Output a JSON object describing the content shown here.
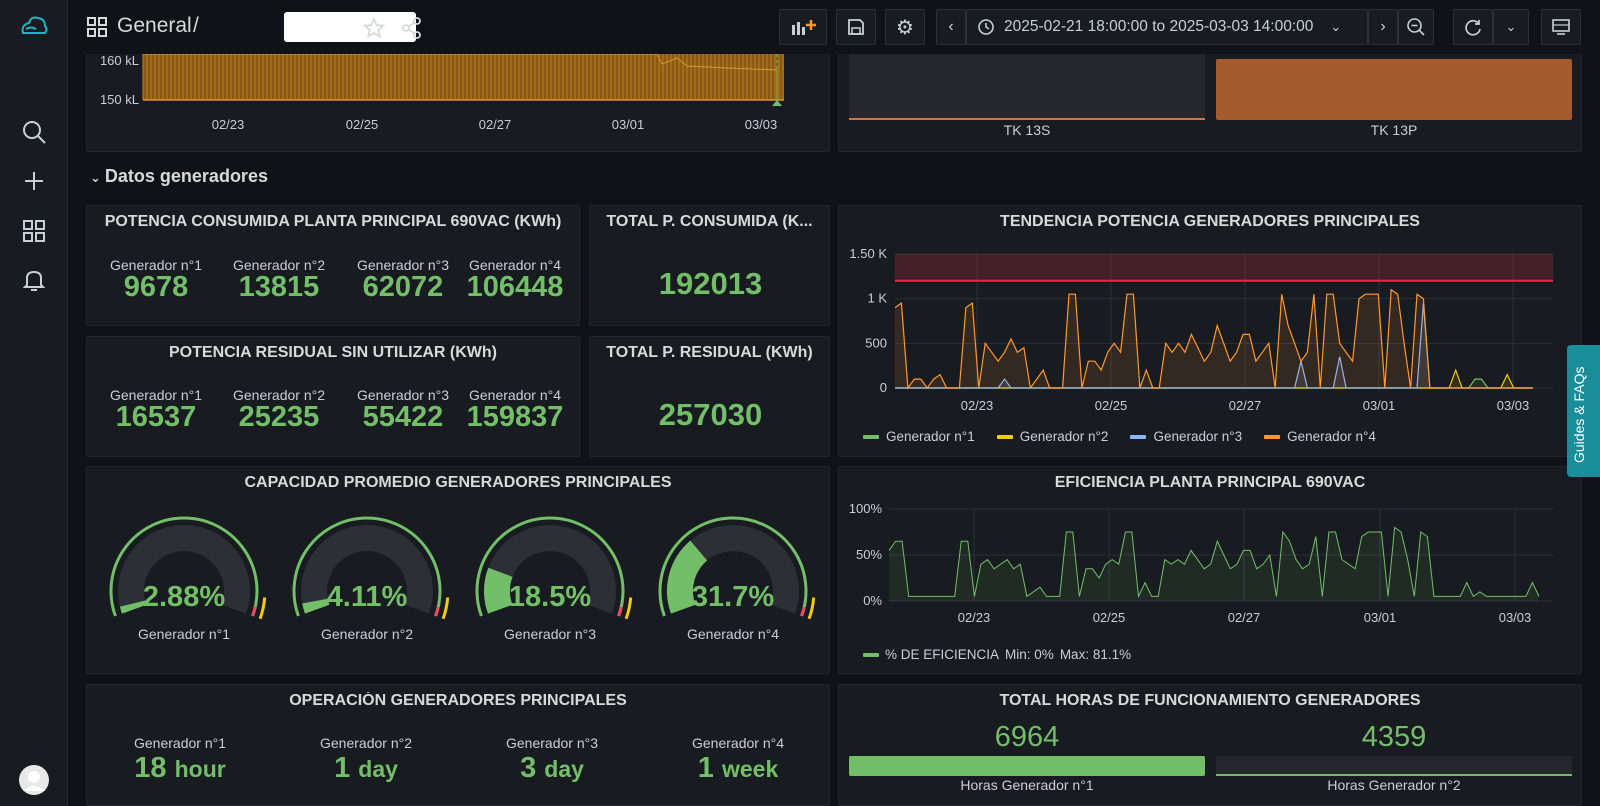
{
  "header": {
    "dashboard_section": "General",
    "separator": "/",
    "time_range": "2025-02-21 18:00:00 to 2025-03-03 14:00:00"
  },
  "colors": {
    "green": "#73bf69",
    "yellow": "#f2cc0c",
    "blue": "#8ab8ff",
    "orange": "#ff9830",
    "red": "#e02f44",
    "teal": "#1a8d9a"
  },
  "top_left_panel": {
    "y_labels": [
      "160 kL",
      "150 kL"
    ],
    "x_labels": [
      "02/23",
      "02/25",
      "02/27",
      "03/01",
      "03/03"
    ]
  },
  "top_right_panel": {
    "bars": [
      {
        "label": "TK 13S"
      },
      {
        "label": "TK 13P"
      }
    ]
  },
  "row": {
    "title": "Datos generadores"
  },
  "potencia_consumida": {
    "title": "POTENCIA CONSUMIDA PLANTA PRINCIPAL 690VAC (KWh)",
    "items": [
      {
        "label": "Generador n°1",
        "value": "9678"
      },
      {
        "label": "Generador n°2",
        "value": "13815"
      },
      {
        "label": "Generador n°3",
        "value": "62072"
      },
      {
        "label": "Generador n°4",
        "value": "106448"
      }
    ]
  },
  "total_consumida": {
    "title": "TOTAL P. CONSUMIDA (K...",
    "value": "192013"
  },
  "potencia_residual": {
    "title": "POTENCIA RESIDUAL SIN UTILIZAR (KWh)",
    "items": [
      {
        "label": "Generador n°1",
        "value": "16537"
      },
      {
        "label": "Generador n°2",
        "value": "25235"
      },
      {
        "label": "Generador n°3",
        "value": "55422"
      },
      {
        "label": "Generador n°4",
        "value": "159837"
      }
    ]
  },
  "total_residual": {
    "title": "TOTAL P. RESIDUAL (KWh)",
    "value": "257030"
  },
  "tendencia": {
    "title": "TENDENCIA POTENCIA GENERADORES PRINCIPALES",
    "legend": [
      "Generador n°1",
      "Generador n°2",
      "Generador n°3",
      "Generador n°4"
    ]
  },
  "capacidad": {
    "title": "CAPACIDAD PROMEDIO GENERADORES PRINCIPALES",
    "gauges": [
      {
        "label": "Generador n°1",
        "value": "2.88%",
        "fraction": 0.0288
      },
      {
        "label": "Generador n°2",
        "value": "4.11%",
        "fraction": 0.0411
      },
      {
        "label": "Generador n°3",
        "value": "18.5%",
        "fraction": 0.185
      },
      {
        "label": "Generador n°4",
        "value": "31.7%",
        "fraction": 0.317
      }
    ]
  },
  "eficiencia": {
    "title": "EFICIENCIA PLANTA PRINCIPAL 690VAC",
    "legend_name": "% DE EFICIENCIA",
    "legend_min": "Min: 0%",
    "legend_max": "Max: 81.1%"
  },
  "operacion": {
    "title": "OPERACIÓN GENERADORES PRINCIPALES",
    "items": [
      {
        "label": "Generador n°1",
        "value": "18",
        "unit": "hour"
      },
      {
        "label": "Generador n°2",
        "value": "1",
        "unit": "day"
      },
      {
        "label": "Generador n°3",
        "value": "3",
        "unit": "day"
      },
      {
        "label": "Generador n°4",
        "value": "1",
        "unit": "week"
      }
    ]
  },
  "horas": {
    "title": "TOTAL HORAS DE FUNCIONAMIENTO GENERADORES",
    "items": [
      {
        "label": "Horas Generador n°1",
        "value": "6964",
        "fraction": 1.0
      },
      {
        "label": "Horas Generador n°2",
        "value": "4359",
        "fraction": 0.0
      }
    ]
  },
  "guides": {
    "label": "Guides & FAQs"
  },
  "chart_data": [
    {
      "type": "area",
      "ylabel": "",
      "y_ticks": [
        "150 kL",
        "160 kL"
      ],
      "x_ticks": [
        "02/23",
        "02/25",
        "02/27",
        "03/01",
        "03/03"
      ]
    },
    {
      "type": "bar",
      "categories": [
        "TK 13S",
        "TK 13P"
      ]
    },
    {
      "type": "line",
      "title": "TENDENCIA POTENCIA GENERADORES PRINCIPALES",
      "y_ticks": [
        "0",
        "500",
        "1 K",
        "1.50 K"
      ],
      "ylim": [
        0,
        1500
      ],
      "x_ticks": [
        "02/23",
        "02/25",
        "02/27",
        "03/01",
        "03/03"
      ],
      "threshold": 1200,
      "series": [
        {
          "name": "Generador n°1",
          "values": [
            0,
            0,
            0,
            0,
            0,
            0,
            0,
            0,
            0,
            0,
            0,
            0,
            0,
            0,
            0,
            0,
            0,
            0,
            0,
            0,
            0,
            0,
            0,
            0,
            0,
            0,
            0,
            0,
            0,
            0,
            0,
            0,
            0,
            0,
            0,
            0,
            0,
            0,
            0,
            0,
            0,
            0,
            0,
            0,
            0,
            0,
            0,
            0,
            0,
            0,
            0,
            0,
            0,
            0,
            0,
            0,
            0,
            0,
            0,
            0,
            0,
            0,
            0,
            0,
            0,
            0,
            0,
            0,
            0,
            0,
            0,
            0,
            0,
            0,
            0,
            0,
            0,
            0,
            0,
            0,
            0,
            0,
            0,
            0,
            0,
            0,
            0,
            0,
            0,
            0,
            100,
            100,
            0,
            0,
            0,
            0,
            0,
            0,
            0,
            0
          ]
        },
        {
          "name": "Generador n°2",
          "values": [
            0,
            0,
            0,
            0,
            0,
            0,
            0,
            0,
            0,
            0,
            0,
            0,
            0,
            0,
            0,
            0,
            0,
            0,
            0,
            0,
            0,
            0,
            0,
            0,
            0,
            0,
            0,
            0,
            0,
            0,
            0,
            0,
            0,
            0,
            0,
            0,
            0,
            0,
            0,
            0,
            0,
            0,
            0,
            0,
            0,
            0,
            0,
            0,
            0,
            0,
            0,
            0,
            0,
            0,
            0,
            0,
            0,
            0,
            0,
            0,
            0,
            0,
            0,
            0,
            0,
            0,
            0,
            0,
            0,
            0,
            0,
            0,
            0,
            0,
            0,
            0,
            0,
            0,
            0,
            0,
            0,
            0,
            0,
            0,
            0,
            0,
            0,
            200,
            0,
            0,
            0,
            0,
            0,
            0,
            0,
            150,
            0,
            0,
            0,
            0
          ]
        },
        {
          "name": "Generador n°3",
          "values": [
            0,
            0,
            0,
            0,
            0,
            0,
            0,
            0,
            0,
            0,
            0,
            0,
            0,
            0,
            0,
            0,
            0,
            100,
            0,
            0,
            0,
            0,
            0,
            0,
            0,
            0,
            0,
            0,
            0,
            0,
            0,
            0,
            0,
            0,
            0,
            0,
            0,
            0,
            0,
            0,
            0,
            0,
            0,
            0,
            0,
            0,
            0,
            0,
            0,
            0,
            0,
            0,
            0,
            0,
            0,
            0,
            0,
            0,
            0,
            0,
            0,
            0,
            0,
            300,
            0,
            0,
            0,
            0,
            0,
            350,
            0,
            0,
            0,
            0,
            0,
            0,
            0,
            0,
            0,
            0,
            0,
            0,
            950,
            0,
            0,
            0,
            0,
            0,
            0,
            0,
            0,
            0,
            0,
            0,
            0,
            0,
            0,
            0,
            0,
            0
          ]
        },
        {
          "name": "Generador n°4",
          "values": [
            900,
            950,
            0,
            100,
            100,
            0,
            100,
            150,
            0,
            0,
            0,
            900,
            950,
            0,
            500,
            400,
            300,
            400,
            550,
            400,
            450,
            0,
            100,
            200,
            0,
            0,
            0,
            1050,
            1050,
            0,
            300,
            300,
            200,
            400,
            500,
            400,
            1050,
            1050,
            0,
            200,
            0,
            0,
            500,
            400,
            500,
            400,
            600,
            450,
            300,
            400,
            700,
            500,
            300,
            400,
            600,
            600,
            300,
            400,
            500,
            0,
            1050,
            700,
            500,
            300,
            400,
            1050,
            0,
            1050,
            1050,
            500,
            400,
            300,
            1000,
            1050,
            1050,
            1050,
            0,
            1100,
            1050,
            500,
            0,
            1050,
            1000,
            0,
            0,
            0,
            0,
            0,
            0,
            0,
            0,
            0,
            0,
            0,
            0,
            0,
            0,
            0,
            0,
            0
          ]
        }
      ]
    },
    {
      "type": "gauge",
      "title": "CAPACIDAD PROMEDIO GENERADORES PRINCIPALES",
      "categories": [
        "Generador n°1",
        "Generador n°2",
        "Generador n°3",
        "Generador n°4"
      ],
      "values": [
        2.88,
        4.11,
        18.5,
        31.7
      ]
    },
    {
      "type": "line",
      "title": "EFICIENCIA PLANTA PRINCIPAL 690VAC",
      "y_ticks": [
        "0%",
        "50%",
        "100%"
      ],
      "ylim": [
        0,
        100
      ],
      "x_ticks": [
        "02/23",
        "02/25",
        "02/27",
        "03/01",
        "03/03"
      ],
      "series": [
        {
          "name": "% DE EFICIENCIA",
          "values": [
            55,
            65,
            65,
            5,
            5,
            5,
            5,
            5,
            5,
            5,
            5,
            65,
            65,
            5,
            40,
            45,
            35,
            40,
            45,
            35,
            40,
            5,
            10,
            15,
            5,
            5,
            5,
            75,
            75,
            5,
            35,
            35,
            25,
            40,
            45,
            40,
            75,
            75,
            5,
            20,
            5,
            5,
            45,
            40,
            45,
            40,
            55,
            45,
            35,
            40,
            65,
            50,
            35,
            40,
            55,
            55,
            35,
            40,
            50,
            5,
            75,
            65,
            45,
            35,
            40,
            70,
            5,
            75,
            75,
            45,
            40,
            35,
            70,
            75,
            75,
            75,
            5,
            80,
            75,
            45,
            5,
            75,
            70,
            5,
            5,
            5,
            5,
            5,
            20,
            5,
            10,
            5,
            5,
            5,
            5,
            5,
            5,
            5,
            20,
            5
          ]
        }
      ]
    },
    {
      "type": "bar",
      "title": "TOTAL HORAS DE FUNCIONAMIENTO GENERADORES",
      "categories": [
        "Horas Generador n°1",
        "Horas Generador n°2"
      ],
      "values": [
        6964,
        4359
      ]
    }
  ]
}
